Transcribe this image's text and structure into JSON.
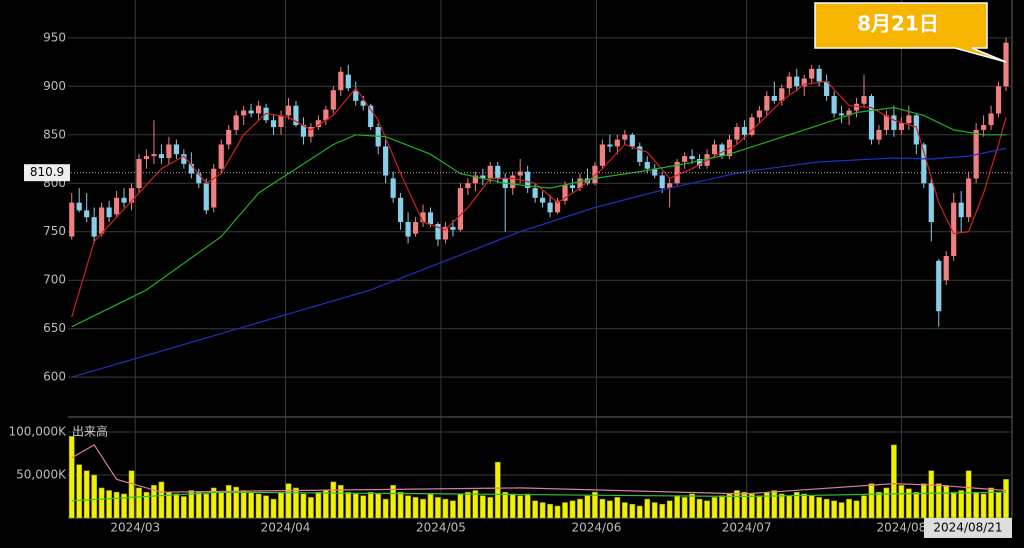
{
  "chart_data": [
    {
      "type": "candlestick",
      "callout": "8月21日",
      "date_label": "2024/08/21",
      "marker_price": 810.9,
      "colors": {
        "up": "#f08080",
        "down": "#87ceeb"
      },
      "xlim": [
        -0.5,
        125.8
      ],
      "xticks": [
        {
          "value": 8.5,
          "label": "2024/03"
        },
        {
          "value": 28.6,
          "label": "2024/04"
        },
        {
          "value": 49.4,
          "label": "2024/05"
        },
        {
          "value": 70.2,
          "label": "2024/06"
        },
        {
          "value": 90.3,
          "label": "2024/07"
        },
        {
          "value": 111,
          "label": "2024/08"
        }
      ],
      "ylim": [
        561,
        989
      ],
      "yticks": [
        600,
        650,
        700,
        750,
        800,
        850,
        900,
        950
      ],
      "grid": true,
      "ohlc": [
        [
          745,
          790,
          742,
          780
        ],
        [
          780,
          795,
          770,
          772
        ],
        [
          772,
          790,
          760,
          765
        ],
        [
          765,
          775,
          738,
          745
        ],
        [
          748,
          780,
          745,
          775
        ],
        [
          775,
          782,
          760,
          765
        ],
        [
          768,
          792,
          765,
          785
        ],
        [
          785,
          795,
          775,
          780
        ],
        [
          780,
          800,
          772,
          795
        ],
        [
          795,
          830,
          790,
          825
        ],
        [
          825,
          835,
          815,
          828
        ],
        [
          828,
          865,
          820,
          830
        ],
        [
          830,
          840,
          820,
          826
        ],
        [
          826,
          848,
          820,
          840
        ],
        [
          840,
          845,
          825,
          830
        ],
        [
          830,
          835,
          815,
          820
        ],
        [
          820,
          832,
          805,
          810
        ],
        [
          810,
          815,
          795,
          800
        ],
        [
          800,
          805,
          768,
          772
        ],
        [
          775,
          820,
          770,
          815
        ],
        [
          815,
          845,
          810,
          840
        ],
        [
          840,
          860,
          835,
          855
        ],
        [
          855,
          875,
          850,
          870
        ],
        [
          870,
          880,
          860,
          875
        ],
        [
          875,
          882,
          868,
          872
        ],
        [
          872,
          885,
          865,
          880
        ],
        [
          878,
          882,
          862,
          865
        ],
        [
          865,
          870,
          850,
          858
        ],
        [
          858,
          875,
          850,
          870
        ],
        [
          870,
          888,
          866,
          880
        ],
        [
          880,
          885,
          858,
          860
        ],
        [
          860,
          868,
          840,
          848
        ],
        [
          848,
          862,
          842,
          858
        ],
        [
          858,
          870,
          855,
          865
        ],
        [
          865,
          880,
          860,
          876
        ],
        [
          876,
          900,
          872,
          896
        ],
        [
          896,
          920,
          890,
          915
        ],
        [
          912,
          922,
          895,
          898
        ],
        [
          895,
          905,
          880,
          885
        ],
        [
          885,
          890,
          875,
          880
        ],
        [
          880,
          882,
          855,
          858
        ],
        [
          858,
          862,
          830,
          838
        ],
        [
          838,
          845,
          800,
          808
        ],
        [
          805,
          812,
          780,
          785
        ],
        [
          785,
          790,
          752,
          760
        ],
        [
          760,
          770,
          738,
          745
        ],
        [
          748,
          765,
          745,
          760
        ],
        [
          760,
          778,
          755,
          770
        ],
        [
          770,
          775,
          755,
          758
        ],
        [
          758,
          760,
          735,
          742
        ],
        [
          742,
          760,
          738,
          755
        ],
        [
          755,
          762,
          745,
          752
        ],
        [
          752,
          800,
          750,
          795
        ],
        [
          795,
          805,
          788,
          800
        ],
        [
          800,
          812,
          792,
          808
        ],
        [
          808,
          815,
          798,
          805
        ],
        [
          805,
          822,
          800,
          818
        ],
        [
          818,
          822,
          800,
          805
        ],
        [
          805,
          810,
          750,
          795
        ],
        [
          795,
          812,
          788,
          808
        ],
        [
          808,
          825,
          800,
          812
        ],
        [
          812,
          818,
          790,
          795
        ],
        [
          795,
          800,
          780,
          785
        ],
        [
          785,
          792,
          775,
          780
        ],
        [
          780,
          788,
          765,
          770
        ],
        [
          770,
          785,
          768,
          782
        ],
        [
          782,
          802,
          778,
          798
        ],
        [
          798,
          805,
          790,
          795
        ],
        [
          795,
          810,
          792,
          805
        ],
        [
          805,
          815,
          798,
          800
        ],
        [
          800,
          822,
          798,
          818
        ],
        [
          818,
          845,
          815,
          840
        ],
        [
          840,
          850,
          832,
          838
        ],
        [
          838,
          850,
          830,
          845
        ],
        [
          845,
          855,
          840,
          850
        ],
        [
          850,
          852,
          835,
          838
        ],
        [
          838,
          842,
          818,
          822
        ],
        [
          822,
          828,
          810,
          815
        ],
        [
          815,
          820,
          805,
          808
        ],
        [
          808,
          812,
          790,
          795
        ],
        [
          795,
          805,
          775,
          800
        ],
        [
          800,
          825,
          798,
          822
        ],
        [
          822,
          832,
          815,
          828
        ],
        [
          828,
          835,
          820,
          825
        ],
        [
          825,
          830,
          815,
          818
        ],
        [
          818,
          835,
          815,
          830
        ],
        [
          830,
          845,
          826,
          840
        ],
        [
          840,
          842,
          825,
          828
        ],
        [
          828,
          850,
          825,
          845
        ],
        [
          845,
          862,
          840,
          858
        ],
        [
          858,
          865,
          845,
          850
        ],
        [
          850,
          872,
          848,
          868
        ],
        [
          868,
          880,
          862,
          875
        ],
        [
          875,
          895,
          870,
          890
        ],
        [
          890,
          905,
          882,
          885
        ],
        [
          885,
          902,
          880,
          898
        ],
        [
          898,
          915,
          892,
          910
        ],
        [
          910,
          918,
          895,
          900
        ],
        [
          900,
          912,
          890,
          908
        ],
        [
          908,
          922,
          902,
          918
        ],
        [
          918,
          922,
          900,
          905
        ],
        [
          905,
          912,
          885,
          890
        ],
        [
          890,
          895,
          868,
          872
        ],
        [
          872,
          880,
          862,
          870
        ],
        [
          870,
          878,
          860,
          875
        ],
        [
          875,
          888,
          868,
          882
        ],
        [
          882,
          912,
          878,
          890
        ],
        [
          890,
          892,
          840,
          845
        ],
        [
          845,
          860,
          840,
          855
        ],
        [
          855,
          875,
          850,
          870
        ],
        [
          870,
          880,
          848,
          855
        ],
        [
          855,
          868,
          850,
          862
        ],
        [
          862,
          880,
          855,
          870
        ],
        [
          870,
          872,
          830,
          840
        ],
        [
          840,
          842,
          795,
          800
        ],
        [
          800,
          805,
          740,
          760
        ],
        [
          720,
          722,
          652,
          668
        ],
        [
          700,
          730,
          695,
          725
        ],
        [
          725,
          790,
          720,
          780
        ],
        [
          780,
          792,
          750,
          765
        ],
        [
          765,
          812,
          760,
          805
        ],
        [
          805,
          862,
          800,
          855
        ],
        [
          855,
          870,
          848,
          860
        ],
        [
          860,
          880,
          855,
          872
        ],
        [
          872,
          905,
          868,
          900
        ],
        [
          900,
          950,
          895,
          945
        ]
      ],
      "lines": [
        {
          "color": "#d02020",
          "x": [
            0,
            3,
            6,
            9,
            12,
            15,
            18,
            20,
            23,
            26,
            29,
            32,
            35,
            38,
            41,
            44,
            47,
            50,
            53,
            56,
            59,
            62,
            65,
            68,
            71,
            74,
            77,
            80,
            83,
            86,
            89,
            92,
            95,
            98,
            101,
            104,
            107,
            110,
            113,
            116,
            118,
            120,
            122,
            124,
            125
          ],
          "values": [
            662,
            740,
            765,
            790,
            815,
            828,
            800,
            810,
            850,
            872,
            868,
            855,
            870,
            898,
            865,
            810,
            760,
            752,
            775,
            805,
            805,
            800,
            780,
            795,
            815,
            840,
            832,
            805,
            815,
            828,
            840,
            862,
            885,
            902,
            905,
            880,
            878,
            865,
            858,
            780,
            748,
            750,
            790,
            840,
            868
          ]
        },
        {
          "color": "#20b020",
          "x": [
            0,
            10,
            20,
            25,
            30,
            35,
            38,
            42,
            48,
            52,
            58,
            64,
            70,
            76,
            82,
            88,
            94,
            100,
            105,
            110,
            114,
            118,
            122,
            125
          ],
          "values": [
            652,
            690,
            745,
            790,
            815,
            840,
            850,
            848,
            830,
            810,
            800,
            795,
            805,
            812,
            820,
            830,
            845,
            860,
            873,
            878,
            870,
            855,
            850,
            850
          ]
        },
        {
          "color": "#2030c0",
          "x": [
            0,
            20,
            40,
            50,
            60,
            70,
            80,
            90,
            100,
            110,
            115,
            120,
            125
          ],
          "values": [
            600,
            645,
            690,
            720,
            750,
            775,
            795,
            812,
            822,
            826,
            825,
            828,
            836
          ]
        }
      ]
    },
    {
      "type": "bar",
      "title": "出来高",
      "color": "#f0f000",
      "ylim": [
        0,
        114000
      ],
      "yticks": [
        {
          "value": 50000,
          "label": "50,000K"
        },
        {
          "value": 100000,
          "label": "100,000K"
        }
      ],
      "values": [
        95000,
        62000,
        55000,
        50000,
        35000,
        32000,
        30000,
        28000,
        55000,
        35000,
        30000,
        38000,
        42000,
        30000,
        28000,
        25000,
        32000,
        30000,
        28000,
        35000,
        30000,
        38000,
        36000,
        32000,
        30000,
        28000,
        26000,
        22000,
        30000,
        40000,
        35000,
        28000,
        24000,
        30000,
        33000,
        42000,
        38000,
        30000,
        28000,
        26000,
        30000,
        28000,
        22000,
        38000,
        30000,
        26000,
        24000,
        22000,
        28000,
        24000,
        22000,
        20000,
        28000,
        30000,
        32000,
        26000,
        24000,
        65000,
        30000,
        28000,
        26000,
        28000,
        20000,
        18000,
        16000,
        14000,
        18000,
        20000,
        22000,
        26000,
        30000,
        22000,
        20000,
        24000,
        18000,
        16000,
        14000,
        22000,
        18000,
        16000,
        20000,
        26000,
        24000,
        28000,
        22000,
        20000,
        24000,
        26000,
        28000,
        32000,
        30000,
        28000,
        26000,
        30000,
        32000,
        28000,
        26000,
        30000,
        28000,
        26000,
        24000,
        22000,
        20000,
        18000,
        22000,
        20000,
        26000,
        40000,
        30000,
        35000,
        85000,
        38000,
        34000,
        30000,
        40000,
        55000,
        40000,
        38000,
        30000,
        32000,
        55000,
        30000,
        28000,
        35000,
        30000,
        45000
      ],
      "lines": [
        {
          "color": "#d080a0",
          "x": [
            0,
            3,
            6,
            12,
            30,
            60,
            90,
            110,
            116,
            125
          ],
          "values": [
            70000,
            85000,
            45000,
            30000,
            32000,
            35000,
            28000,
            40000,
            38000,
            32000
          ]
        },
        {
          "color": "#30c030",
          "x": [
            0,
            20,
            50,
            90,
            110,
            125
          ],
          "values": [
            20000,
            30000,
            28000,
            25000,
            28000,
            30000
          ]
        }
      ]
    }
  ]
}
